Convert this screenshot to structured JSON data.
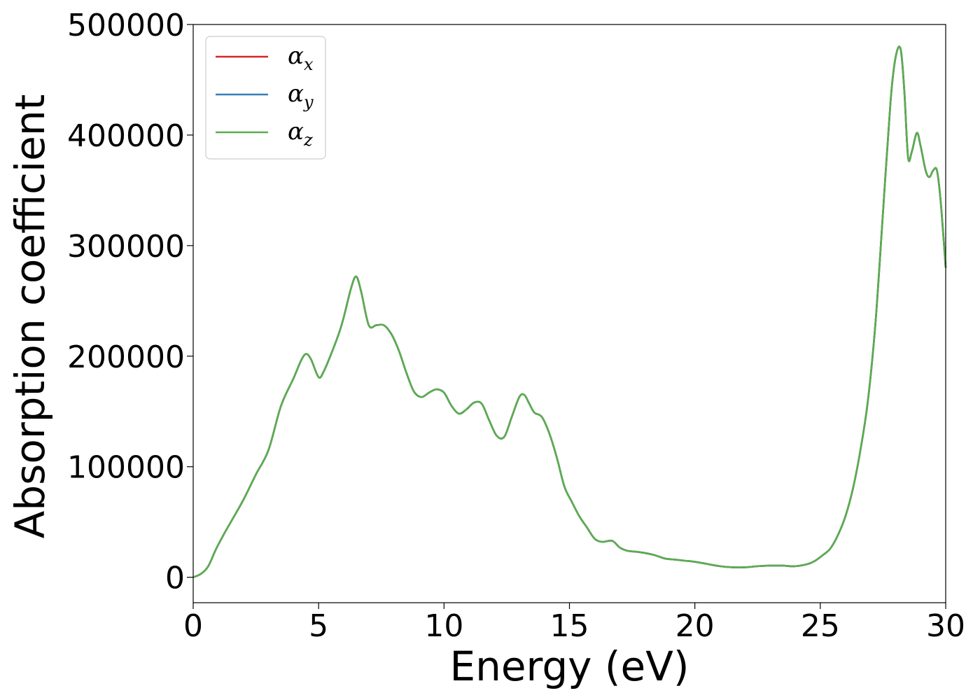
{
  "chart_data": {
    "type": "line",
    "title": "",
    "xlabel": "Energy (eV)",
    "ylabel": "Absorption coefficient",
    "xlim": [
      0,
      30
    ],
    "ylim": [
      -23000,
      500000
    ],
    "xticks": [
      0,
      5,
      10,
      15,
      20,
      25,
      30
    ],
    "xtick_labels": [
      "0",
      "5",
      "10",
      "15",
      "20",
      "25",
      "30"
    ],
    "yticks": [
      0,
      100000,
      200000,
      300000,
      400000,
      500000
    ],
    "ytick_labels": [
      "0",
      "100000",
      "200000",
      "300000",
      "400000",
      "500000"
    ],
    "grid": false,
    "legend_position": "top-left",
    "x": [
      0,
      0.3,
      0.6,
      0.9,
      1.2,
      1.5,
      2.0,
      2.5,
      3.0,
      3.5,
      4.0,
      4.3,
      4.5,
      4.7,
      5.0,
      5.2,
      5.5,
      5.8,
      6.0,
      6.3,
      6.5,
      6.7,
      7.0,
      7.3,
      7.6,
      7.9,
      8.2,
      8.5,
      8.8,
      9.1,
      9.4,
      9.7,
      10.0,
      10.3,
      10.6,
      10.9,
      11.2,
      11.5,
      11.8,
      12.1,
      12.4,
      12.7,
      13.0,
      13.2,
      13.4,
      13.6,
      13.9,
      14.2,
      14.5,
      14.8,
      15.1,
      15.4,
      15.7,
      16.0,
      16.3,
      16.7,
      17.0,
      17.3,
      17.7,
      18.0,
      18.4,
      18.8,
      19.2,
      19.6,
      20.0,
      20.5,
      21.0,
      21.5,
      22.0,
      22.5,
      23.0,
      23.5,
      24.0,
      24.5,
      24.8,
      25.1,
      25.4,
      25.7,
      26.0,
      26.3,
      26.6,
      26.9,
      27.2,
      27.5,
      27.8,
      28.0,
      28.2,
      28.35,
      28.5,
      28.65,
      28.85,
      29.0,
      29.2,
      29.35,
      29.5,
      29.65,
      29.8,
      30.0
    ],
    "series": [
      {
        "name": "α_x",
        "label": "α",
        "sub": "x",
        "color": "#d62728",
        "values": [
          0,
          3000,
          10000,
          25000,
          38000,
          50000,
          70000,
          93000,
          115000,
          155000,
          180000,
          196000,
          202000,
          197000,
          181000,
          186000,
          202000,
          220000,
          235000,
          262000,
          272000,
          258000,
          228000,
          228000,
          228000,
          220000,
          205000,
          185000,
          168000,
          163000,
          167000,
          170000,
          167000,
          155000,
          148000,
          152000,
          158000,
          157000,
          142000,
          128000,
          127000,
          145000,
          163000,
          165000,
          157000,
          149000,
          145000,
          130000,
          108000,
          82000,
          68000,
          55000,
          45000,
          35000,
          32000,
          33000,
          27000,
          24000,
          23000,
          22000,
          20000,
          17000,
          16000,
          15000,
          14000,
          12000,
          10000,
          9000,
          9000,
          10000,
          10500,
          10500,
          10000,
          12000,
          15000,
          20000,
          26000,
          38000,
          55000,
          80000,
          115000,
          160000,
          230000,
          330000,
          430000,
          470000,
          478000,
          440000,
          380000,
          385000,
          402000,
          390000,
          368000,
          362000,
          368000,
          368000,
          340000,
          280000
        ]
      },
      {
        "name": "α_y",
        "label": "α",
        "sub": "y",
        "color": "#377eb8",
        "values": [
          0,
          3000,
          10000,
          25000,
          38000,
          50000,
          70000,
          93000,
          115000,
          155000,
          180000,
          196000,
          202000,
          197000,
          181000,
          186000,
          202000,
          220000,
          235000,
          262000,
          272000,
          258000,
          228000,
          228000,
          228000,
          220000,
          205000,
          185000,
          168000,
          163000,
          167000,
          170000,
          167000,
          155000,
          148000,
          152000,
          158000,
          157000,
          142000,
          128000,
          127000,
          145000,
          163000,
          165000,
          157000,
          149000,
          145000,
          130000,
          108000,
          82000,
          68000,
          55000,
          45000,
          35000,
          32000,
          33000,
          27000,
          24000,
          23000,
          22000,
          20000,
          17000,
          16000,
          15000,
          14000,
          12000,
          10000,
          9000,
          9000,
          10000,
          10500,
          10500,
          10000,
          12000,
          15000,
          20000,
          26000,
          38000,
          55000,
          80000,
          115000,
          160000,
          230000,
          330000,
          430000,
          470000,
          478000,
          440000,
          380000,
          385000,
          402000,
          390000,
          368000,
          362000,
          368000,
          368000,
          340000,
          280000
        ]
      },
      {
        "name": "α_z",
        "label": "α",
        "sub": "z",
        "color": "#5aad4e",
        "values": [
          0,
          3000,
          10000,
          25000,
          38000,
          50000,
          70000,
          93000,
          115000,
          155000,
          180000,
          196000,
          202000,
          197000,
          181000,
          186000,
          202000,
          220000,
          235000,
          262000,
          272000,
          258000,
          228000,
          228000,
          228000,
          220000,
          205000,
          185000,
          168000,
          163000,
          167000,
          170000,
          167000,
          155000,
          148000,
          152000,
          158000,
          157000,
          142000,
          128000,
          127000,
          145000,
          163000,
          165000,
          157000,
          149000,
          145000,
          130000,
          108000,
          82000,
          68000,
          55000,
          45000,
          35000,
          32000,
          33000,
          27000,
          24000,
          23000,
          22000,
          20000,
          17000,
          16000,
          15000,
          14000,
          12000,
          10000,
          9000,
          9000,
          10000,
          10500,
          10500,
          10000,
          12000,
          15000,
          20000,
          26000,
          38000,
          55000,
          80000,
          115000,
          160000,
          230000,
          330000,
          430000,
          470000,
          478000,
          440000,
          380000,
          385000,
          402000,
          390000,
          368000,
          362000,
          368000,
          368000,
          340000,
          280000
        ]
      }
    ]
  }
}
